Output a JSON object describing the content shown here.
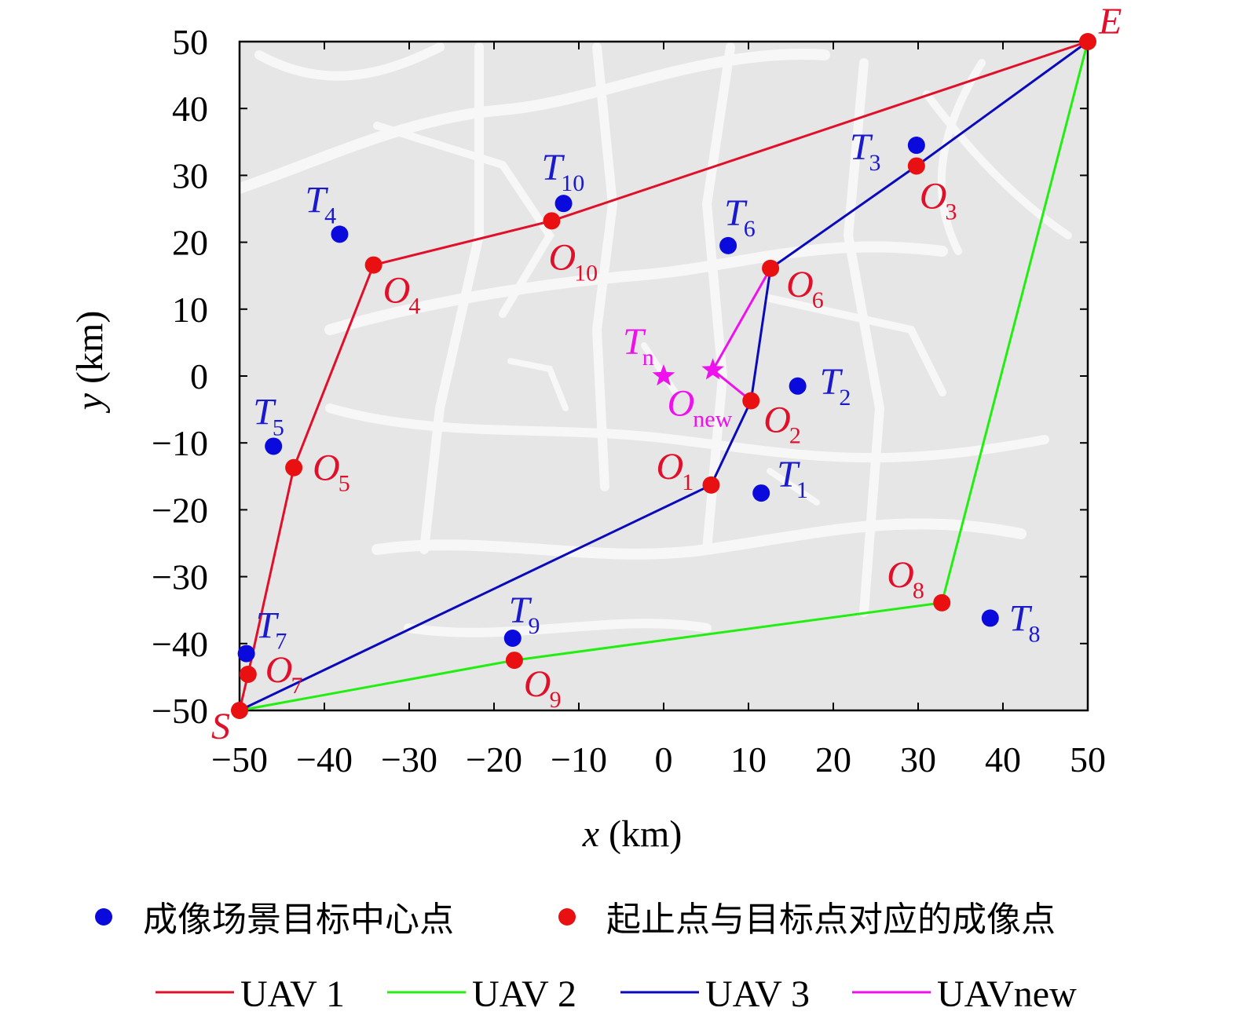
{
  "chart_data": {
    "type": "scatter",
    "xlabel_var": "x",
    "xlabel_unit": "(km)",
    "ylabel_var": "y",
    "ylabel_unit": "(km)",
    "xlim": [
      -50,
      50
    ],
    "ylim": [
      -50,
      50
    ],
    "xticks": [
      -50,
      -40,
      -30,
      -20,
      -10,
      0,
      10,
      20,
      30,
      40,
      50
    ],
    "yticks": [
      -50,
      -40,
      -30,
      -20,
      -10,
      0,
      10,
      20,
      30,
      40,
      50
    ],
    "grid": false,
    "background": "grey city road map",
    "start": {
      "label": "S",
      "x": -50,
      "y": -50
    },
    "end": {
      "label": "E",
      "x": 50,
      "y": 50
    },
    "targets": [
      {
        "base": "T",
        "sub": "1",
        "x": 11.5,
        "y": -17.5
      },
      {
        "base": "T",
        "sub": "2",
        "x": 15.8,
        "y": -1.5
      },
      {
        "base": "T",
        "sub": "3",
        "x": 29.8,
        "y": 34.5
      },
      {
        "base": "T",
        "sub": "4",
        "x": -38.2,
        "y": 21.2
      },
      {
        "base": "T",
        "sub": "5",
        "x": -46.0,
        "y": -10.5
      },
      {
        "base": "T",
        "sub": "6",
        "x": 7.6,
        "y": 19.5
      },
      {
        "base": "T",
        "sub": "7",
        "x": -49.2,
        "y": -41.5
      },
      {
        "base": "T",
        "sub": "8",
        "x": 38.5,
        "y": -36.2
      },
      {
        "base": "T",
        "sub": "9",
        "x": -17.8,
        "y": -39.2
      },
      {
        "base": "T",
        "sub": "10",
        "x": -11.8,
        "y": 25.8
      }
    ],
    "imaging_points": [
      {
        "base": "O",
        "sub": "1",
        "x": 5.6,
        "y": -16.3
      },
      {
        "base": "O",
        "sub": "2",
        "x": 10.3,
        "y": -3.7
      },
      {
        "base": "O",
        "sub": "3",
        "x": 29.8,
        "y": 31.4
      },
      {
        "base": "O",
        "sub": "4",
        "x": -34.2,
        "y": 16.6
      },
      {
        "base": "O",
        "sub": "5",
        "x": -43.6,
        "y": -13.7
      },
      {
        "base": "O",
        "sub": "6",
        "x": 12.6,
        "y": 16.1
      },
      {
        "base": "O",
        "sub": "7",
        "x": -49.0,
        "y": -44.6
      },
      {
        "base": "O",
        "sub": "8",
        "x": 32.8,
        "y": -33.9
      },
      {
        "base": "O",
        "sub": "9",
        "x": -17.6,
        "y": -42.5
      },
      {
        "base": "O",
        "sub": "10",
        "x": -13.2,
        "y": 23.2
      }
    ],
    "new_target": {
      "base": "T",
      "sub": "n",
      "x": 0,
      "y": 0
    },
    "new_imaging_point": {
      "base": "O",
      "sub": "new",
      "x": 5.8,
      "y": 0.9
    },
    "series": [
      {
        "name": "UAV 1",
        "color": "#e0102a",
        "path": [
          [
            -50,
            -50
          ],
          [
            -49.0,
            -44.6
          ],
          [
            -43.6,
            -13.7
          ],
          [
            -34.2,
            16.6
          ],
          [
            -13.2,
            23.2
          ],
          [
            50,
            50
          ]
        ]
      },
      {
        "name": "UAV 2",
        "color": "#22ee11",
        "path": [
          [
            -50,
            -50
          ],
          [
            -17.6,
            -42.5
          ],
          [
            32.8,
            -33.9
          ],
          [
            50,
            50
          ]
        ]
      },
      {
        "name": "UAV 3",
        "color": "#0a0abb",
        "path": [
          [
            -50,
            -50
          ],
          [
            5.6,
            -16.3
          ],
          [
            10.3,
            -3.7
          ],
          [
            12.6,
            16.1
          ],
          [
            29.8,
            31.4
          ],
          [
            50,
            50
          ]
        ]
      },
      {
        "name": "UAVnew",
        "color": "#ee11ee",
        "path": [
          [
            12.6,
            16.1
          ],
          [
            5.8,
            0.9
          ],
          [
            10.3,
            -3.7
          ]
        ]
      }
    ],
    "legend": {
      "placement": "bottom",
      "markers": [
        {
          "label": "成像场景目标中心点",
          "color": "#0a0adc"
        },
        {
          "label": "起止点与目标点对应的成像点",
          "color": "#e81010"
        }
      ]
    },
    "colors": {
      "target_dot": "#0a0adc",
      "imaging_dot": "#e81010",
      "target_text": "#1a1acc",
      "imaging_text": "#e0102a",
      "new_text": "#ee11ee",
      "map_bg": "#e6e6e6",
      "map_road": "#f6f6f6"
    }
  }
}
